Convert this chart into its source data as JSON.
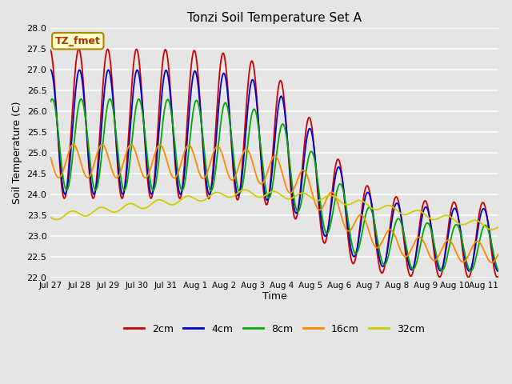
{
  "title": "Tonzi Soil Temperature Set A",
  "xlabel": "Time",
  "ylabel": "Soil Temperature (C)",
  "ylim": [
    22.0,
    28.0
  ],
  "yticks": [
    22.0,
    22.5,
    23.0,
    23.5,
    24.0,
    24.5,
    25.0,
    25.5,
    26.0,
    26.5,
    27.0,
    27.5,
    28.0
  ],
  "background_color": "#e5e5e5",
  "plot_bg_color": "#e5e5e5",
  "grid_color": "white",
  "lines": [
    {
      "label": "2cm",
      "color": "#cc0000"
    },
    {
      "label": "4cm",
      "color": "#0000cc"
    },
    {
      "label": "8cm",
      "color": "#00aa00"
    },
    {
      "label": "16cm",
      "color": "#ff8800"
    },
    {
      "label": "32cm",
      "color": "#cccc00"
    }
  ],
  "annotation_text": "TZ_fmet",
  "annotation_color": "#aa3300",
  "annotation_bg": "#ffffcc",
  "annotation_border": "#aa8800",
  "n_points": 720,
  "start_day": 0,
  "end_day": 15.5,
  "xtick_positions": [
    0,
    1,
    2,
    3,
    4,
    5,
    6,
    7,
    8,
    9,
    10,
    11,
    12,
    13,
    14,
    15
  ],
  "xtick_labels": [
    "Jul 27",
    "Jul 28",
    "Jul 29",
    "Jul 30",
    "Jul 31",
    "Aug 1",
    "Aug 2",
    "Aug 3",
    "Aug 4",
    "Aug 5",
    "Aug 6",
    "Aug 7",
    "Aug 8",
    "Aug 9",
    "Aug 10",
    "Aug 11"
  ]
}
